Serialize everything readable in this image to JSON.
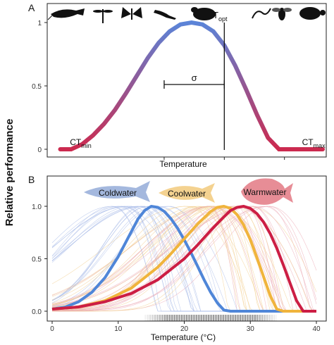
{
  "ylabel": "Relative performance",
  "chart_data": [
    {
      "panel_label": "A",
      "type": "line",
      "title": "",
      "xlabel": "Temperature",
      "ylabel": "Relative performance",
      "yticks": [
        0,
        0.5,
        1
      ],
      "ytick_labels": [
        "0",
        "0.5",
        "1"
      ],
      "xlim": [
        0,
        1
      ],
      "ylim": [
        0,
        1.05
      ],
      "grid": false,
      "color_gradient": [
        "#cc2a4f",
        "#5b84d8"
      ],
      "series": [
        {
          "x": [
            0.04,
            0.08,
            0.12,
            0.16,
            0.2,
            0.24,
            0.28,
            0.32,
            0.36,
            0.4,
            0.44,
            0.48,
            0.52,
            0.56,
            0.6,
            0.64,
            0.68,
            0.72,
            0.76,
            0.8,
            0.84,
            0.88,
            0.92,
            0.95,
            0.98,
            1.0
          ],
          "y": [
            0.0,
            0.0,
            0.04,
            0.11,
            0.2,
            0.31,
            0.44,
            0.58,
            0.72,
            0.84,
            0.93,
            0.985,
            1.0,
            0.985,
            0.93,
            0.82,
            0.66,
            0.47,
            0.27,
            0.09,
            0.0,
            0.0,
            0.0,
            0.0,
            0.0,
            0.0
          ]
        }
      ],
      "annotations": [
        {
          "text": "T",
          "sub": "opt",
          "x": 0.64,
          "y": 1.0
        },
        {
          "text": "σ",
          "x": 0.53,
          "y": 0.5
        },
        {
          "text": "CT",
          "sub": "min",
          "x": 0.06,
          "y": 0.0
        },
        {
          "text": "CT",
          "sub": "max",
          "x": 0.95,
          "y": 0.0
        }
      ],
      "icons": [
        "catfish-silhouette-icon",
        "dragonfly-silhouette-icon",
        "butterfly-silhouette-icon",
        "lizard-silhouette-icon",
        "frog-silhouette-icon",
        "snake-silhouette-icon",
        "bee-silhouette-icon",
        "turtle-silhouette-icon"
      ]
    },
    {
      "panel_label": "B",
      "type": "line",
      "title": "",
      "xlabel": "Temperature (°C)",
      "ylabel": "Relative performance",
      "xticks": [
        0,
        10,
        20,
        30,
        40
      ],
      "xtick_labels": [
        "0",
        "10",
        "20",
        "30",
        "40"
      ],
      "yticks": [
        0,
        0.5,
        1
      ],
      "ytick_labels": [
        "0.0",
        "0.5",
        "1.0"
      ],
      "xlim": [
        -2,
        42
      ],
      "ylim": [
        -0.03,
        1.08
      ],
      "grid": false,
      "legend": [
        {
          "label": "Coldwater",
          "color": "#4f86d8"
        },
        {
          "label": "Coolwater",
          "color": "#f0b43c"
        },
        {
          "label": "Warmwater",
          "color": "#cc1e44"
        }
      ],
      "series": [
        {
          "name": "Coldwater",
          "color": "#4f86d8",
          "x": [
            0,
            2,
            4,
            6,
            8,
            10,
            12,
            13,
            14,
            15,
            16,
            17,
            18,
            19,
            20,
            21,
            22,
            23,
            24,
            25,
            26,
            27,
            30,
            40
          ],
          "y": [
            0.02,
            0.04,
            0.09,
            0.18,
            0.32,
            0.52,
            0.76,
            0.88,
            0.96,
            1.0,
            0.99,
            0.95,
            0.88,
            0.79,
            0.68,
            0.56,
            0.43,
            0.3,
            0.18,
            0.08,
            0.01,
            0.0,
            0.0,
            0.0
          ]
        },
        {
          "name": "Coolwater",
          "color": "#f0b43c",
          "x": [
            0,
            4,
            8,
            12,
            16,
            18,
            20,
            22,
            24,
            25,
            26,
            27,
            28,
            29,
            30,
            31,
            32,
            33,
            34,
            35,
            40
          ],
          "y": [
            0.02,
            0.04,
            0.1,
            0.22,
            0.42,
            0.55,
            0.69,
            0.83,
            0.95,
            0.99,
            1.0,
            0.98,
            0.92,
            0.82,
            0.68,
            0.51,
            0.33,
            0.15,
            0.02,
            0.0,
            0.0
          ]
        },
        {
          "name": "Warmwater",
          "color": "#cc1e44",
          "x": [
            0,
            4,
            8,
            12,
            16,
            20,
            22,
            24,
            26,
            27,
            28,
            29,
            30,
            31,
            32,
            33,
            34,
            35,
            36,
            37,
            38,
            40
          ],
          "y": [
            0.02,
            0.04,
            0.09,
            0.17,
            0.3,
            0.5,
            0.63,
            0.77,
            0.9,
            0.96,
            0.99,
            1.0,
            0.98,
            0.93,
            0.85,
            0.74,
            0.6,
            0.44,
            0.27,
            0.1,
            0.0,
            0.0
          ]
        }
      ],
      "rug_range": [
        17,
        31
      ]
    }
  ]
}
